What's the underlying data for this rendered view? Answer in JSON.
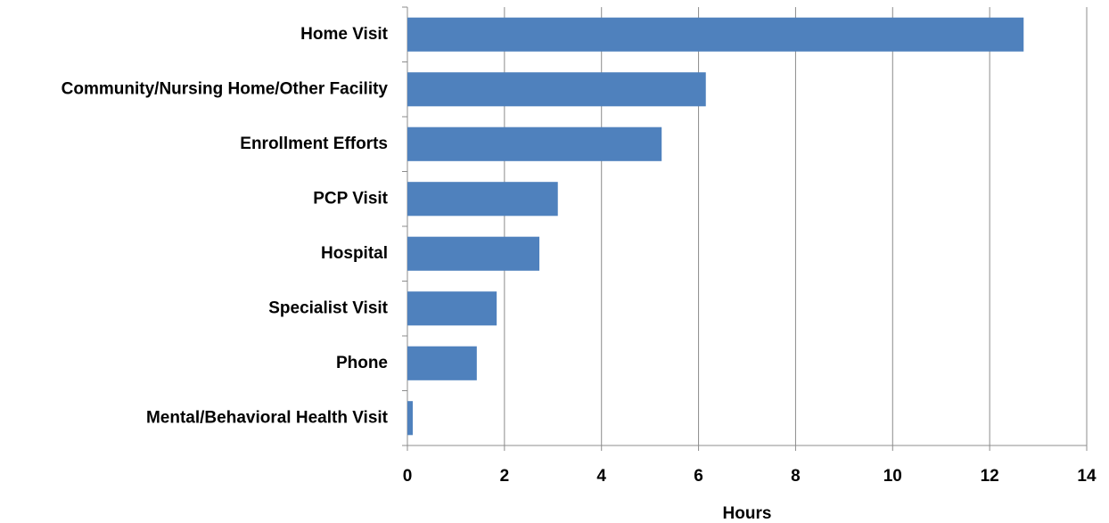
{
  "chart_data": {
    "type": "bar",
    "orientation": "horizontal",
    "x_label": "Hours",
    "categories": [
      "Home Visit",
      "Community/Nursing Home/Other Facility",
      "Enrollment Efforts",
      "PCP Visit",
      "Hospital",
      "Specialist Visit",
      "Phone",
      "Mental/Behavioral Health Visit"
    ],
    "values": [
      12.7,
      6.15,
      5.24,
      3.1,
      2.72,
      1.84,
      1.43,
      0.11
    ],
    "color": "#4f81bd",
    "xlim": [
      0,
      14
    ],
    "xticks": [
      0,
      2,
      4,
      6,
      8,
      10,
      12,
      14
    ],
    "grid": true
  }
}
